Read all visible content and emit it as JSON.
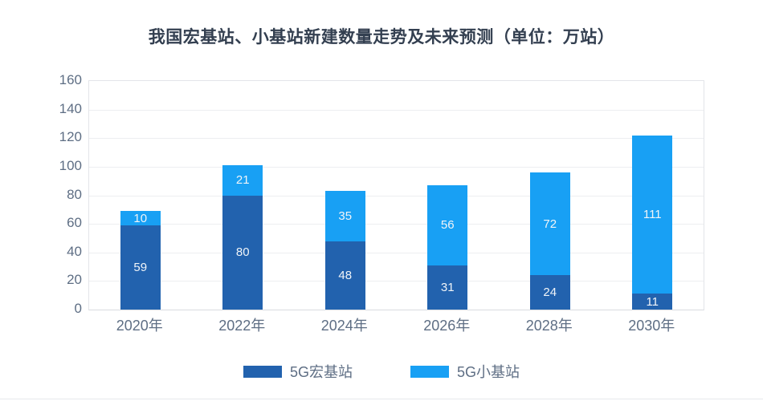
{
  "title": "我国宏基站、小基站新建数量走势及未来预测（单位：万站）",
  "chart_data": {
    "type": "bar",
    "stacked": true,
    "title": "我国宏基站、小基站新建数量走势及未来预测（单位：万站）",
    "categories": [
      "2020年",
      "2022年",
      "2024年",
      "2026年",
      "2028年",
      "2030年"
    ],
    "series": [
      {
        "name": "5G宏基站",
        "color": "#2262AE",
        "values": [
          59,
          80,
          48,
          31,
          24,
          11
        ]
      },
      {
        "name": "5G小基站",
        "color": "#18A0F4",
        "values": [
          10,
          21,
          35,
          56,
          72,
          111
        ]
      }
    ],
    "xlabel": "",
    "ylabel": "",
    "ylim": [
      0,
      160
    ],
    "ytick_step": 20,
    "grid": true,
    "legend_position": "bottom",
    "value_labels": true
  },
  "colors": {
    "title_text": "#333F50",
    "axis_text": "#5E6E84",
    "value_label_text": "#F0F4F8",
    "gridline": "#EDEEF1",
    "plot_border": "#E3E5E9"
  }
}
